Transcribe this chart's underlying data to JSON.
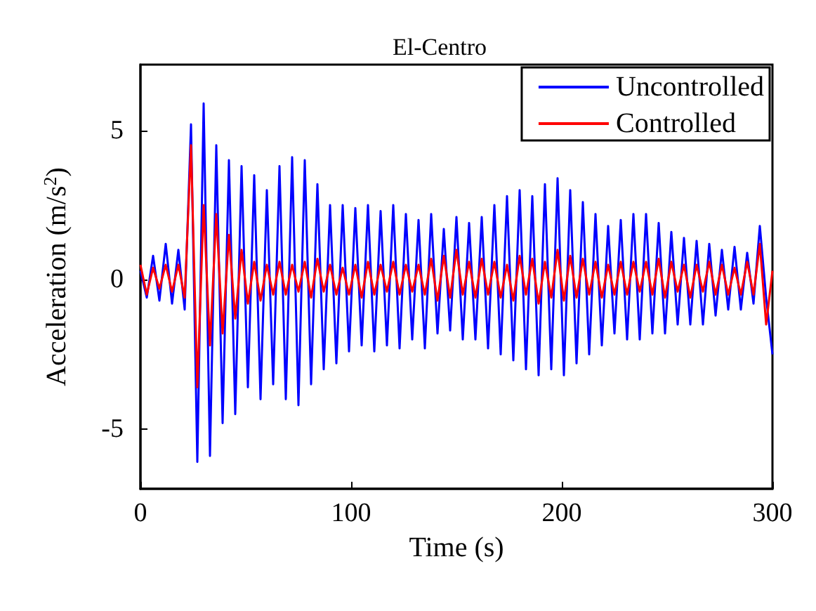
{
  "chart_data": {
    "type": "line",
    "title": "El-Centro",
    "xlabel": "Time (s)",
    "ylabel": "Acceleration (m/s$^{2}$)",
    "x": [
      0,
      3,
      6,
      9,
      12,
      15,
      18,
      21,
      24,
      27,
      30,
      33,
      36,
      39,
      42,
      45,
      48,
      51,
      54,
      57,
      60,
      63,
      66,
      69,
      72,
      75,
      78,
      81,
      84,
      87,
      90,
      93,
      96,
      99,
      102,
      105,
      108,
      111,
      114,
      117,
      120,
      123,
      126,
      129,
      132,
      135,
      138,
      141,
      144,
      147,
      150,
      153,
      156,
      159,
      162,
      165,
      168,
      171,
      174,
      177,
      180,
      183,
      186,
      189,
      192,
      195,
      198,
      201,
      204,
      207,
      210,
      213,
      216,
      219,
      222,
      225,
      228,
      231,
      234,
      237,
      240,
      243,
      246,
      249,
      252,
      255,
      258,
      261,
      264,
      267,
      270,
      273,
      276,
      279,
      282,
      285,
      288,
      291,
      294,
      297,
      300
    ],
    "series": [
      {
        "name": "Uncontrolled",
        "color": "#0000ff",
        "values": [
          0.3,
          -0.6,
          0.8,
          -0.7,
          1.2,
          -0.8,
          1.0,
          -1.0,
          5.2,
          -6.1,
          5.9,
          -5.9,
          4.5,
          -4.8,
          4.0,
          -4.5,
          3.8,
          -3.6,
          3.5,
          -4.0,
          3.0,
          -3.5,
          3.8,
          -4.0,
          4.1,
          -4.2,
          4.0,
          -3.5,
          3.2,
          -3.0,
          2.5,
          -2.8,
          2.5,
          -2.4,
          2.4,
          -2.2,
          2.5,
          -2.4,
          2.3,
          -2.2,
          2.5,
          -2.3,
          2.2,
          -2.0,
          2.0,
          -2.3,
          2.2,
          -1.8,
          1.7,
          -1.7,
          2.1,
          -2.0,
          1.9,
          -2.0,
          2.1,
          -2.3,
          2.5,
          -2.5,
          2.8,
          -2.7,
          3.0,
          -3.0,
          2.8,
          -3.2,
          3.2,
          -3.0,
          3.4,
          -3.2,
          3.0,
          -2.8,
          2.6,
          -2.5,
          2.2,
          -2.2,
          1.8,
          -1.8,
          2.0,
          -2.0,
          2.2,
          -2.0,
          2.2,
          -1.8,
          1.9,
          -1.8,
          1.6,
          -1.5,
          1.4,
          -1.5,
          1.3,
          -1.5,
          1.2,
          -1.2,
          1.0,
          -1.0,
          1.1,
          -1.0,
          0.9,
          -0.8,
          1.8,
          -0.6,
          -2.5
        ]
      },
      {
        "name": "Controlled",
        "color": "#ff0000",
        "values": [
          0.5,
          -0.5,
          0.4,
          -0.3,
          0.5,
          -0.4,
          0.5,
          -0.6,
          4.5,
          -3.6,
          2.5,
          -2.2,
          2.2,
          -1.8,
          1.5,
          -1.3,
          1.0,
          -0.8,
          0.6,
          -0.7,
          0.5,
          -0.5,
          0.6,
          -0.5,
          0.5,
          -0.4,
          0.6,
          -0.6,
          0.7,
          -0.4,
          0.5,
          -0.5,
          0.4,
          -0.5,
          0.5,
          -0.6,
          0.6,
          -0.5,
          0.5,
          -0.4,
          0.6,
          -0.5,
          0.5,
          -0.4,
          0.5,
          -0.5,
          0.7,
          -0.7,
          0.8,
          -0.6,
          1.0,
          -0.5,
          0.6,
          -0.6,
          0.7,
          -0.5,
          0.6,
          -0.6,
          0.5,
          -0.7,
          0.8,
          -0.5,
          0.7,
          -0.8,
          0.6,
          -0.6,
          1.0,
          -0.7,
          0.8,
          -0.6,
          0.7,
          -0.5,
          0.6,
          -0.6,
          0.5,
          -0.5,
          0.6,
          -0.5,
          0.6,
          -0.4,
          0.6,
          -0.5,
          0.7,
          -0.6,
          0.6,
          -0.4,
          0.5,
          -0.6,
          0.5,
          -0.4,
          0.6,
          -0.5,
          0.5,
          -0.5,
          0.4,
          -0.5,
          0.6,
          -0.5,
          1.2,
          -1.5,
          0.3
        ]
      }
    ],
    "xlim": [
      0,
      300
    ],
    "xticks": [
      0,
      100,
      200,
      300
    ],
    "ylim": [
      -7,
      7.2
    ],
    "yticks": [
      -5,
      0,
      5
    ],
    "grid": false,
    "legend": "top right",
    "marker": "none",
    "line_style": "solid"
  }
}
